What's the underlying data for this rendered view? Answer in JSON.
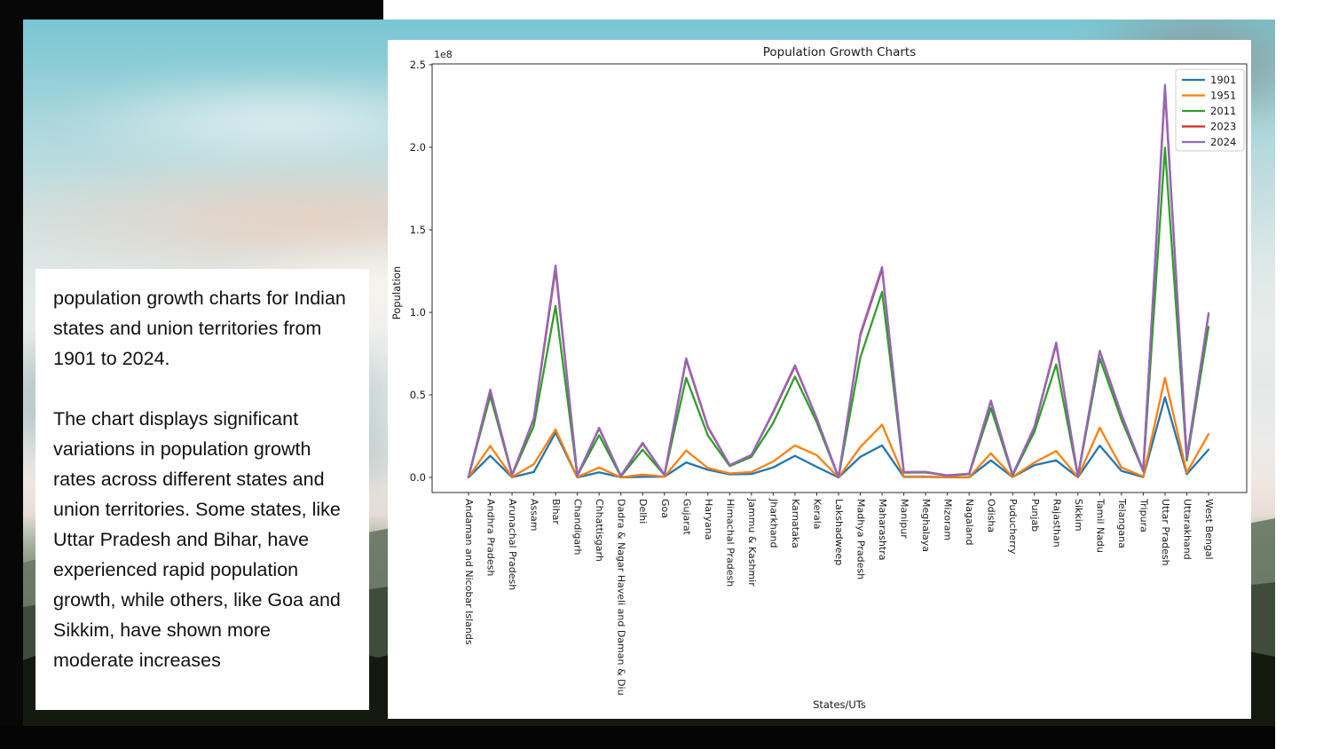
{
  "caption_box": {
    "paragraph1": "population growth charts for Indian states and union territories from 1901 to 2024.",
    "paragraph2": "The chart displays significant variations in population growth rates across different states and union territories. Some states, like Uttar Pradesh and Bihar, have experienced rapid population growth, while others, like Goa and Sikkim, have shown more moderate increases"
  },
  "chart_data": {
    "type": "line",
    "title": "Population Growth Charts",
    "xlabel": "States/UTs",
    "ylabel": "Population",
    "y_offset_label": "1e8",
    "yticks": [
      0.0,
      0.5,
      1.0,
      1.5,
      2.0,
      2.5
    ],
    "ylim": [
      -0.09,
      2.51
    ],
    "grid": false,
    "legend_position": "upper right",
    "categories": [
      "Andaman and Nicobar Islands",
      "Andhra Pradesh",
      "Arunachal Pradesh",
      "Assam",
      "Bihar",
      "Chandigarh",
      "Chhattisgarh",
      "Dadra & Nagar Haveli and Daman & Diu",
      "Delhi",
      "Goa",
      "Gujarat",
      "Haryana",
      "Himachal Pradesh",
      "Jammu & Kashmir",
      "Jharkhand",
      "Karnataka",
      "Kerala",
      "Lakshadweep",
      "Madhya Pradesh",
      "Maharashtra",
      "Manipur",
      "Meghalaya",
      "Mizoram",
      "Nagaland",
      "Odisha",
      "Puducherry",
      "Punjab",
      "Rajasthan",
      "Sikkim",
      "Tamil Nadu",
      "Telangana",
      "Tripura",
      "Uttar Pradesh",
      "Uttarakhand",
      "West Bengal"
    ],
    "units": "1e8 persons",
    "series": [
      {
        "name": "1901",
        "color": "#1f77b4",
        "values": [
          0.0002,
          0.131,
          0.001,
          0.033,
          0.272,
          0.0002,
          0.031,
          0.001,
          0.004,
          0.005,
          0.091,
          0.046,
          0.019,
          0.021,
          0.061,
          0.131,
          0.064,
          0.0001,
          0.125,
          0.194,
          0.003,
          0.003,
          0.001,
          0.001,
          0.103,
          0.002,
          0.075,
          0.103,
          0.001,
          0.193,
          0.04,
          0.002,
          0.486,
          0.02,
          0.169
        ]
      },
      {
        "name": "1951",
        "color": "#ff7f0e",
        "values": [
          0.0003,
          0.191,
          0.003,
          0.08,
          0.291,
          0.002,
          0.06,
          0.0006,
          0.017,
          0.005,
          0.163,
          0.057,
          0.024,
          0.033,
          0.097,
          0.194,
          0.135,
          0.0002,
          0.184,
          0.32,
          0.006,
          0.006,
          0.002,
          0.002,
          0.146,
          0.003,
          0.091,
          0.16,
          0.001,
          0.301,
          0.06,
          0.006,
          0.603,
          0.029,
          0.263
        ]
      },
      {
        "name": "2011",
        "color": "#2ca02c",
        "values": [
          0.0038,
          0.494,
          0.0138,
          0.312,
          1.04,
          0.0106,
          0.256,
          0.0059,
          0.168,
          0.0146,
          0.604,
          0.254,
          0.069,
          0.125,
          0.33,
          0.611,
          0.334,
          0.0006,
          0.726,
          1.124,
          0.029,
          0.03,
          0.011,
          0.02,
          0.42,
          0.0125,
          0.277,
          0.685,
          0.0061,
          0.721,
          0.35,
          0.037,
          1.998,
          0.101,
          0.913
        ]
      },
      {
        "name": "2023",
        "color": "#d62728",
        "values": [
          0.004,
          0.526,
          0.0156,
          0.354,
          1.263,
          0.012,
          0.297,
          0.0095,
          0.206,
          0.0157,
          0.714,
          0.304,
          0.0744,
          0.1358,
          0.394,
          0.674,
          0.3568,
          0.0007,
          0.86,
          1.263,
          0.0325,
          0.0335,
          0.0124,
          0.0222,
          0.462,
          0.0164,
          0.3055,
          0.808,
          0.0069,
          0.765,
          0.38,
          0.0414,
          2.351,
          0.1168,
          0.988
        ]
      },
      {
        "name": "2024",
        "color": "#9467bd",
        "values": [
          0.004,
          0.532,
          0.0158,
          0.359,
          1.284,
          0.0122,
          0.301,
          0.0096,
          0.21,
          0.0158,
          0.722,
          0.308,
          0.0748,
          0.1367,
          0.399,
          0.68,
          0.358,
          0.0007,
          0.87,
          1.275,
          0.033,
          0.034,
          0.0126,
          0.0225,
          0.466,
          0.0166,
          0.3085,
          0.817,
          0.007,
          0.768,
          0.382,
          0.0417,
          2.378,
          0.1178,
          0.995
        ]
      }
    ]
  }
}
